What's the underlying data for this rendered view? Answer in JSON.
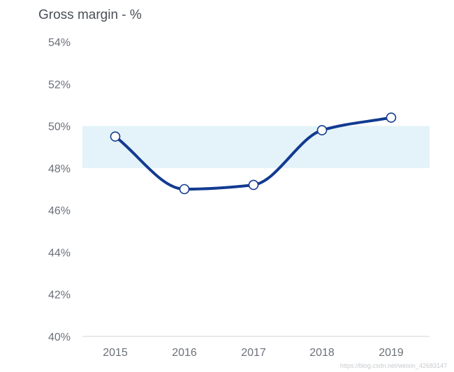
{
  "chart_data": {
    "type": "line",
    "title": "Gross margin - %",
    "xlabel": "",
    "ylabel": "",
    "categories": [
      "2015",
      "2016",
      "2017",
      "2018",
      "2019"
    ],
    "series": [
      {
        "values": [
          49.5,
          47.0,
          47.2,
          49.8,
          50.4
        ],
        "color": "#123a91"
      }
    ],
    "yticks": [
      "54%",
      "52%",
      "50%",
      "48%",
      "46%",
      "44%",
      "42%",
      "40%"
    ],
    "ylim": [
      40,
      54
    ],
    "target_band": {
      "from": 48,
      "to": 50,
      "color": "#e4f3fa"
    },
    "grid": false,
    "legend": "none",
    "marker_fill": "#ffffff",
    "axis_color": "#cfd3d8"
  },
  "watermark": "https://blog.csdn.net/weixin_42683147"
}
